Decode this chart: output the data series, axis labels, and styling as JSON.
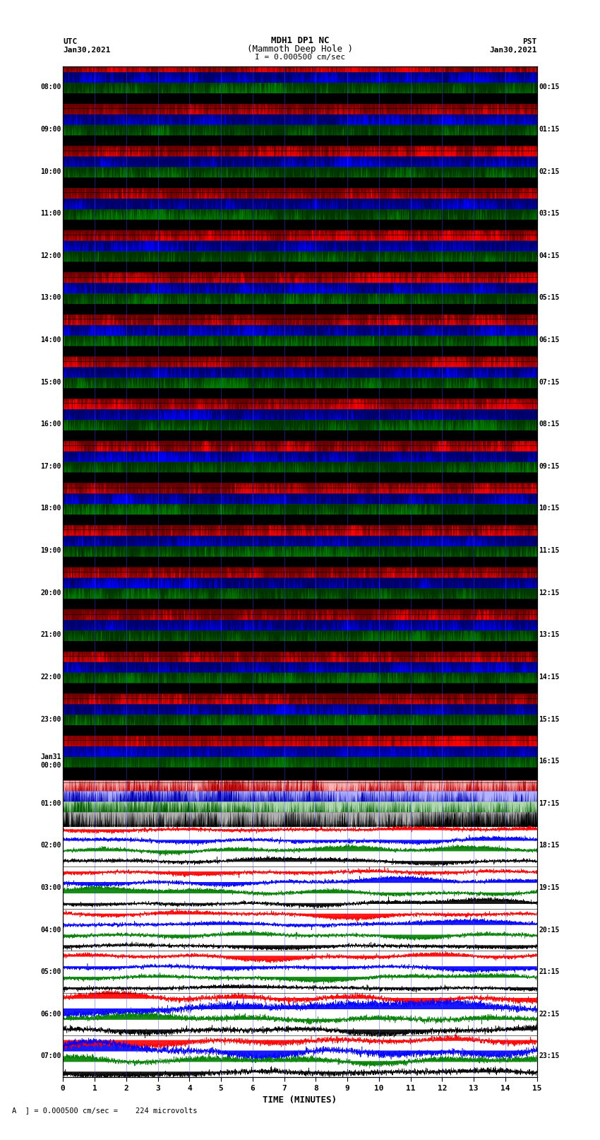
{
  "title_line1": "MDH1 DP1 NC",
  "title_line2": "(Mammoth Deep Hole )",
  "title_line3": "I = 0.000500 cm/sec",
  "left_label_top": "UTC",
  "left_label_date": "Jan30,2021",
  "right_label_top": "PST",
  "right_label_date": "Jan30,2021",
  "bottom_label": "TIME (MINUTES)",
  "bottom_note": "= 0.000500 cm/sec =    224 microvolts",
  "xlabel_ticks": [
    0,
    1,
    2,
    3,
    4,
    5,
    6,
    7,
    8,
    9,
    10,
    11,
    12,
    13,
    14,
    15
  ],
  "utc_times_left": [
    "08:00",
    "09:00",
    "10:00",
    "11:00",
    "12:00",
    "13:00",
    "14:00",
    "15:00",
    "16:00",
    "17:00",
    "18:00",
    "19:00",
    "20:00",
    "21:00",
    "22:00",
    "23:00",
    "Jan31\n00:00",
    "01:00",
    "02:00",
    "03:00",
    "04:00",
    "05:00",
    "06:00",
    "07:00"
  ],
  "pst_times_right": [
    "00:15",
    "01:15",
    "02:15",
    "03:15",
    "04:15",
    "05:15",
    "06:15",
    "07:15",
    "08:15",
    "09:15",
    "10:15",
    "11:15",
    "12:15",
    "13:15",
    "14:15",
    "15:15",
    "16:15",
    "17:15",
    "18:15",
    "19:15",
    "20:15",
    "21:15",
    "22:15",
    "23:15"
  ],
  "n_rows": 24,
  "n_samples": 3000,
  "fig_width": 8.5,
  "fig_height": 16.13,
  "bg_color": "#ffffff",
  "dpi": 100,
  "noisy_rows": 16,
  "noisy_colors": [
    "#ff0000",
    "#0000ff",
    "#008000",
    "#000000"
  ],
  "quiet_colors": [
    "#ff0000",
    "#0000ff",
    "#008000",
    "#000000"
  ],
  "vline_color": "#4040ff",
  "vline_alpha": 0.5,
  "vline_lw": 0.6
}
